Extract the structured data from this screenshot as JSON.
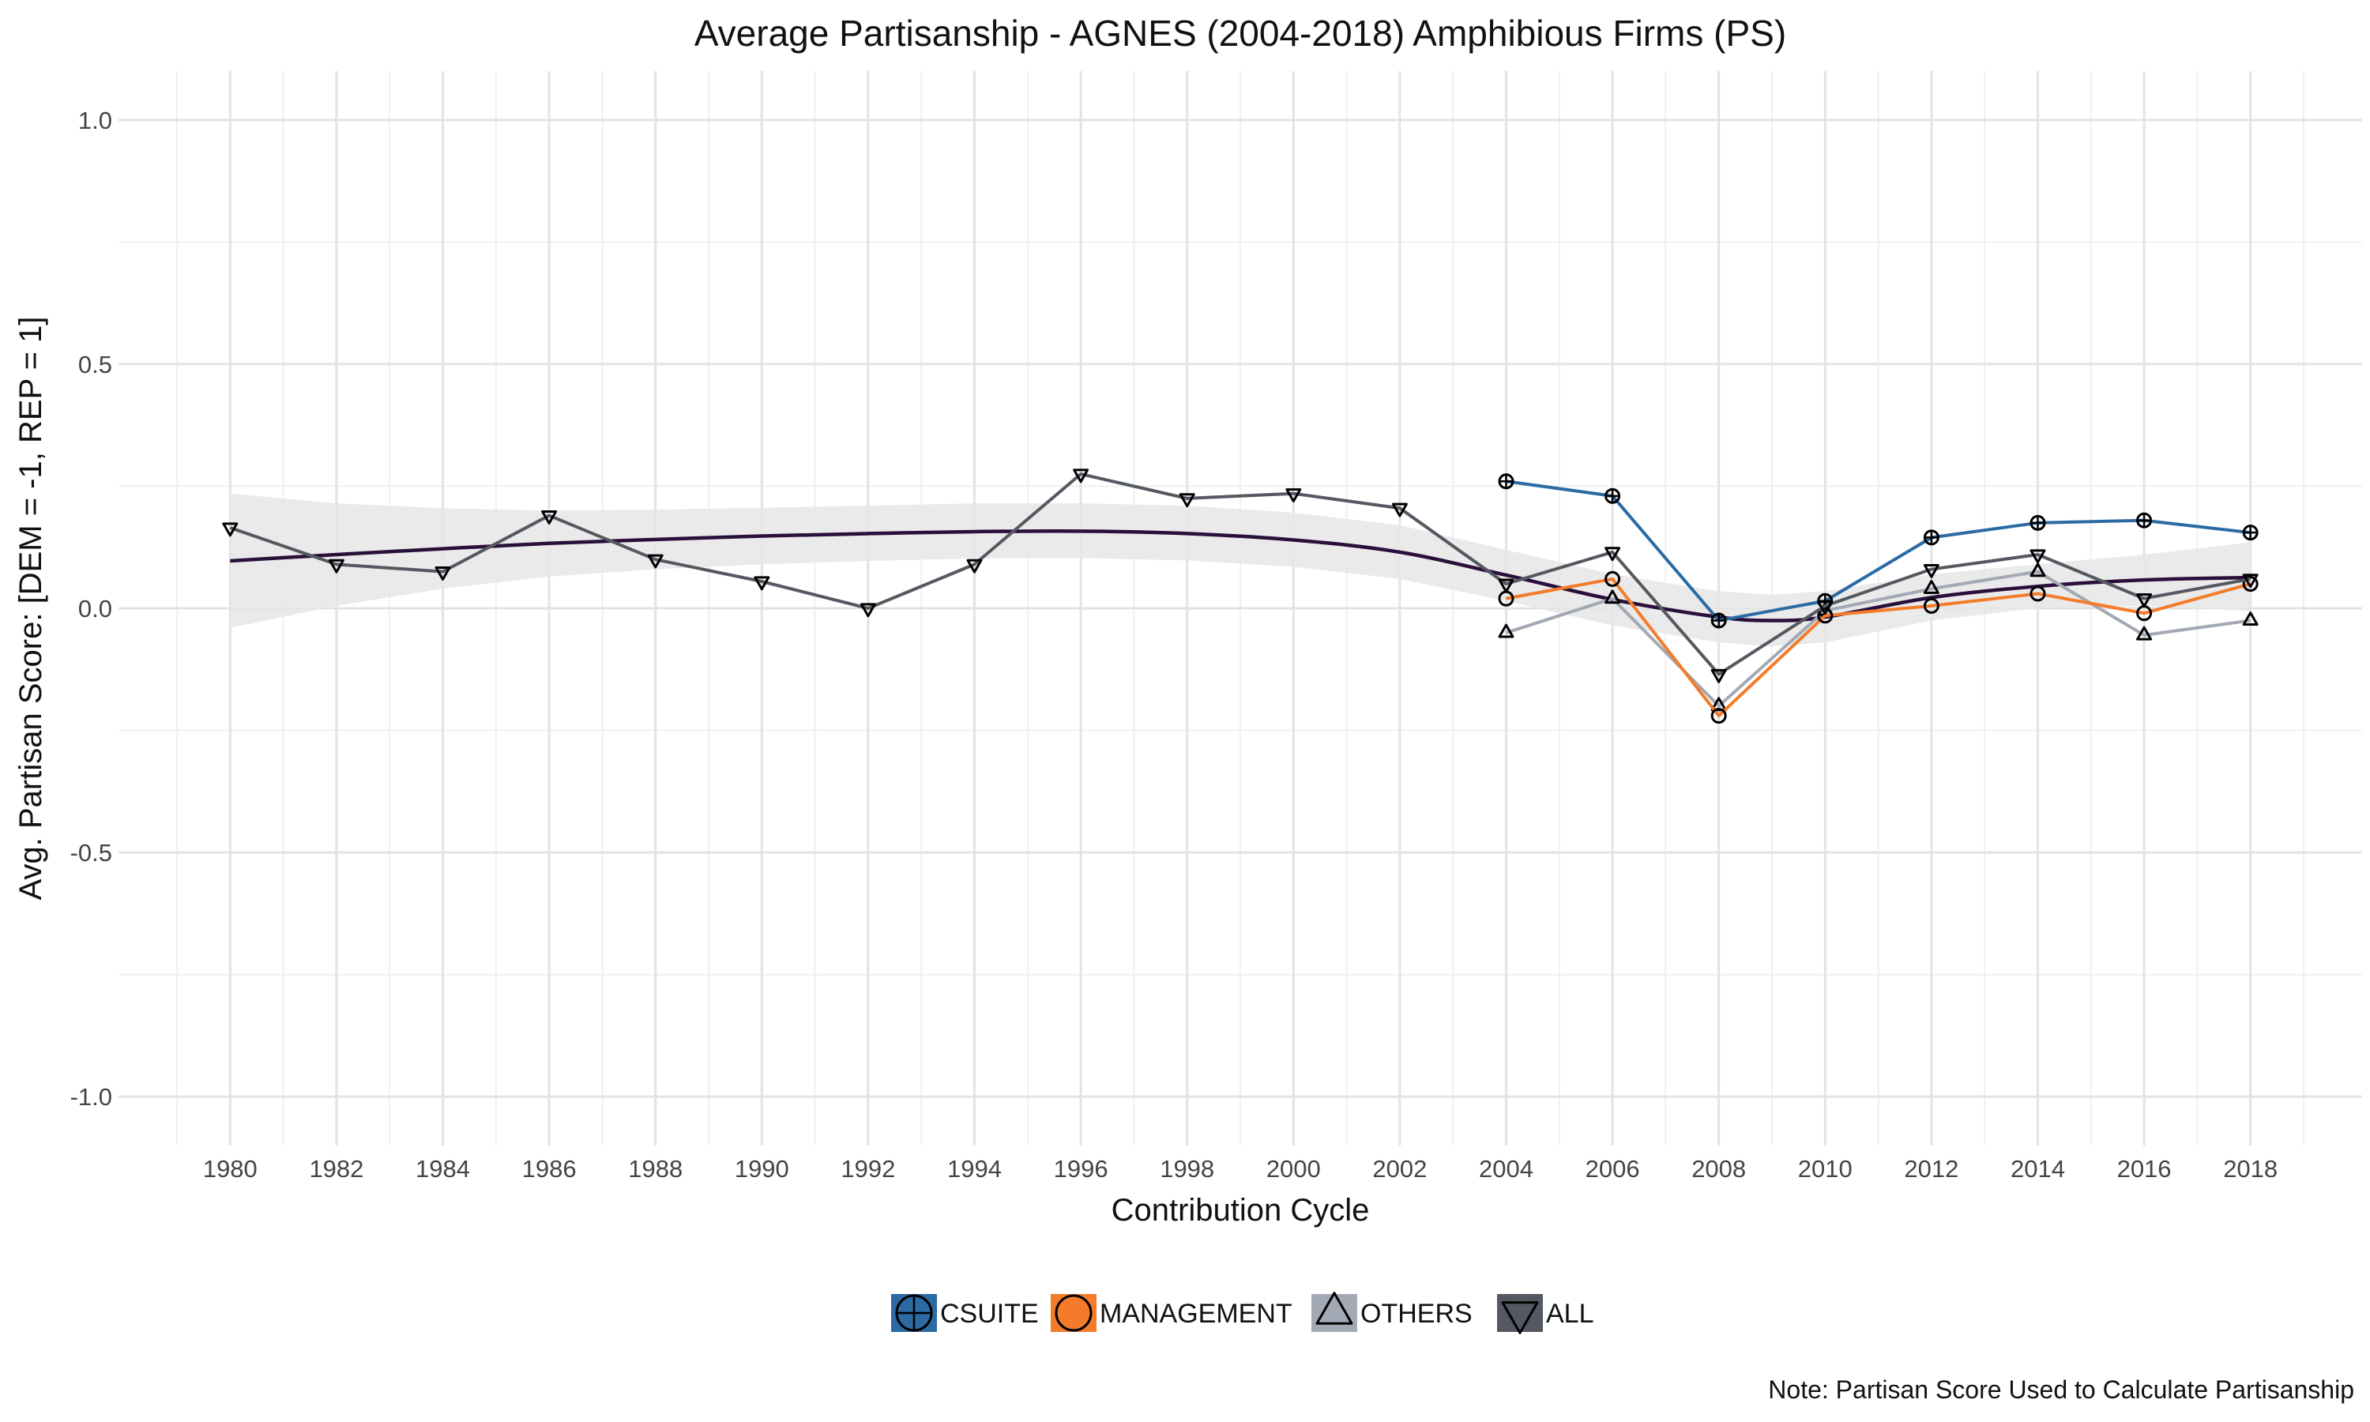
{
  "chart_data": {
    "type": "line",
    "title": "Average Partisanship - AGNES (2004-2018) Amphibious Firms (PS)",
    "xlabel": "Contribution Cycle",
    "ylabel": "Avg. Partisan Score: [DEM = -1, REP = 1]",
    "note": "Note: Partisan Score Used to Calculate Partisanship",
    "xlim": [
      1977.9,
      2020.1
    ],
    "ylim": [
      -1.1,
      1.1
    ],
    "x_ticks": [
      "1980",
      "1982",
      "1984",
      "1986",
      "1988",
      "1990",
      "1992",
      "1994",
      "1996",
      "1998",
      "2000",
      "2002",
      "2004",
      "2006",
      "2008",
      "2010",
      "2012",
      "2014",
      "2016",
      "2018"
    ],
    "y_ticks": [
      "1.0",
      "0.5",
      "0.0",
      "-0.5",
      "-1.0"
    ],
    "grid": true,
    "legend_position": "bottom",
    "series": [
      {
        "name": "CSUITE",
        "color": "#2b6aa3",
        "marker": "circle-plus",
        "points": [
          {
            "x": 2004,
            "y": 0.26
          },
          {
            "x": 2006,
            "y": 0.23
          },
          {
            "x": 2008,
            "y": -0.025
          },
          {
            "x": 2010,
            "y": 0.015
          },
          {
            "x": 2012,
            "y": 0.145
          },
          {
            "x": 2014,
            "y": 0.175
          },
          {
            "x": 2016,
            "y": 0.18
          },
          {
            "x": 2018,
            "y": 0.155
          }
        ]
      },
      {
        "name": "MANAGEMENT",
        "color": "#f47b2a",
        "marker": "circle",
        "points": [
          {
            "x": 2004,
            "y": 0.02
          },
          {
            "x": 2006,
            "y": 0.06
          },
          {
            "x": 2008,
            "y": -0.22
          },
          {
            "x": 2010,
            "y": -0.015
          },
          {
            "x": 2012,
            "y": 0.005
          },
          {
            "x": 2014,
            "y": 0.03
          },
          {
            "x": 2016,
            "y": -0.01
          },
          {
            "x": 2018,
            "y": 0.05
          }
        ]
      },
      {
        "name": "OTHERS",
        "color": "#a3a9b4",
        "marker": "triangle-up",
        "points": [
          {
            "x": 2004,
            "y": -0.05
          },
          {
            "x": 2006,
            "y": 0.02
          },
          {
            "x": 2008,
            "y": -0.2
          },
          {
            "x": 2010,
            "y": -0.005
          },
          {
            "x": 2012,
            "y": 0.04
          },
          {
            "x": 2014,
            "y": 0.075
          },
          {
            "x": 2016,
            "y": -0.055
          },
          {
            "x": 2018,
            "y": -0.025
          }
        ]
      },
      {
        "name": "ALL",
        "color": "#545961",
        "marker": "triangle-down",
        "points": [
          {
            "x": 1980,
            "y": 0.165
          },
          {
            "x": 1982,
            "y": 0.09
          },
          {
            "x": 1984,
            "y": 0.075
          },
          {
            "x": 1986,
            "y": 0.19
          },
          {
            "x": 1988,
            "y": 0.1
          },
          {
            "x": 1990,
            "y": 0.055
          },
          {
            "x": 1992,
            "y": 0.0
          },
          {
            "x": 1994,
            "y": 0.09
          },
          {
            "x": 1996,
            "y": 0.275
          },
          {
            "x": 1998,
            "y": 0.225
          },
          {
            "x": 2000,
            "y": 0.235
          },
          {
            "x": 2002,
            "y": 0.205
          },
          {
            "x": 2004,
            "y": 0.05
          },
          {
            "x": 2006,
            "y": 0.115
          },
          {
            "x": 2008,
            "y": -0.135
          },
          {
            "x": 2010,
            "y": 0.005
          },
          {
            "x": 2012,
            "y": 0.08
          },
          {
            "x": 2014,
            "y": 0.11
          },
          {
            "x": 2016,
            "y": 0.02
          },
          {
            "x": 2018,
            "y": 0.06
          }
        ]
      }
    ],
    "smooth": {
      "color": "#2a0f3a",
      "band_color": "#e6e6e6",
      "points": [
        {
          "x": 1980,
          "y": 0.097,
          "lo": -0.04,
          "hi": 0.235
        },
        {
          "x": 1982,
          "y": 0.11,
          "lo": 0.005,
          "hi": 0.215
        },
        {
          "x": 1984,
          "y": 0.122,
          "lo": 0.04,
          "hi": 0.205
        },
        {
          "x": 1986,
          "y": 0.133,
          "lo": 0.065,
          "hi": 0.2
        },
        {
          "x": 1988,
          "y": 0.141,
          "lo": 0.08,
          "hi": 0.202
        },
        {
          "x": 1990,
          "y": 0.148,
          "lo": 0.09,
          "hi": 0.206
        },
        {
          "x": 1992,
          "y": 0.153,
          "lo": 0.097,
          "hi": 0.21
        },
        {
          "x": 1994,
          "y": 0.157,
          "lo": 0.102,
          "hi": 0.215
        },
        {
          "x": 1996,
          "y": 0.158,
          "lo": 0.103,
          "hi": 0.215
        },
        {
          "x": 1998,
          "y": 0.153,
          "lo": 0.098,
          "hi": 0.21
        },
        {
          "x": 2000,
          "y": 0.14,
          "lo": 0.085,
          "hi": 0.196
        },
        {
          "x": 2002,
          "y": 0.115,
          "lo": 0.06,
          "hi": 0.17
        },
        {
          "x": 2004,
          "y": 0.068,
          "lo": 0.015,
          "hi": 0.12
        },
        {
          "x": 2006,
          "y": 0.018,
          "lo": -0.035,
          "hi": 0.07
        },
        {
          "x": 2008,
          "y": -0.018,
          "lo": -0.07,
          "hi": 0.035
        },
        {
          "x": 2009,
          "y": -0.025,
          "lo": -0.078,
          "hi": 0.028
        },
        {
          "x": 2010,
          "y": -0.018,
          "lo": -0.07,
          "hi": 0.035
        },
        {
          "x": 2012,
          "y": 0.022,
          "lo": -0.025,
          "hi": 0.07
        },
        {
          "x": 2014,
          "y": 0.045,
          "lo": 0.0,
          "hi": 0.09
        },
        {
          "x": 2016,
          "y": 0.058,
          "lo": 0.005,
          "hi": 0.11
        },
        {
          "x": 2018,
          "y": 0.063,
          "lo": -0.005,
          "hi": 0.135
        }
      ]
    }
  }
}
